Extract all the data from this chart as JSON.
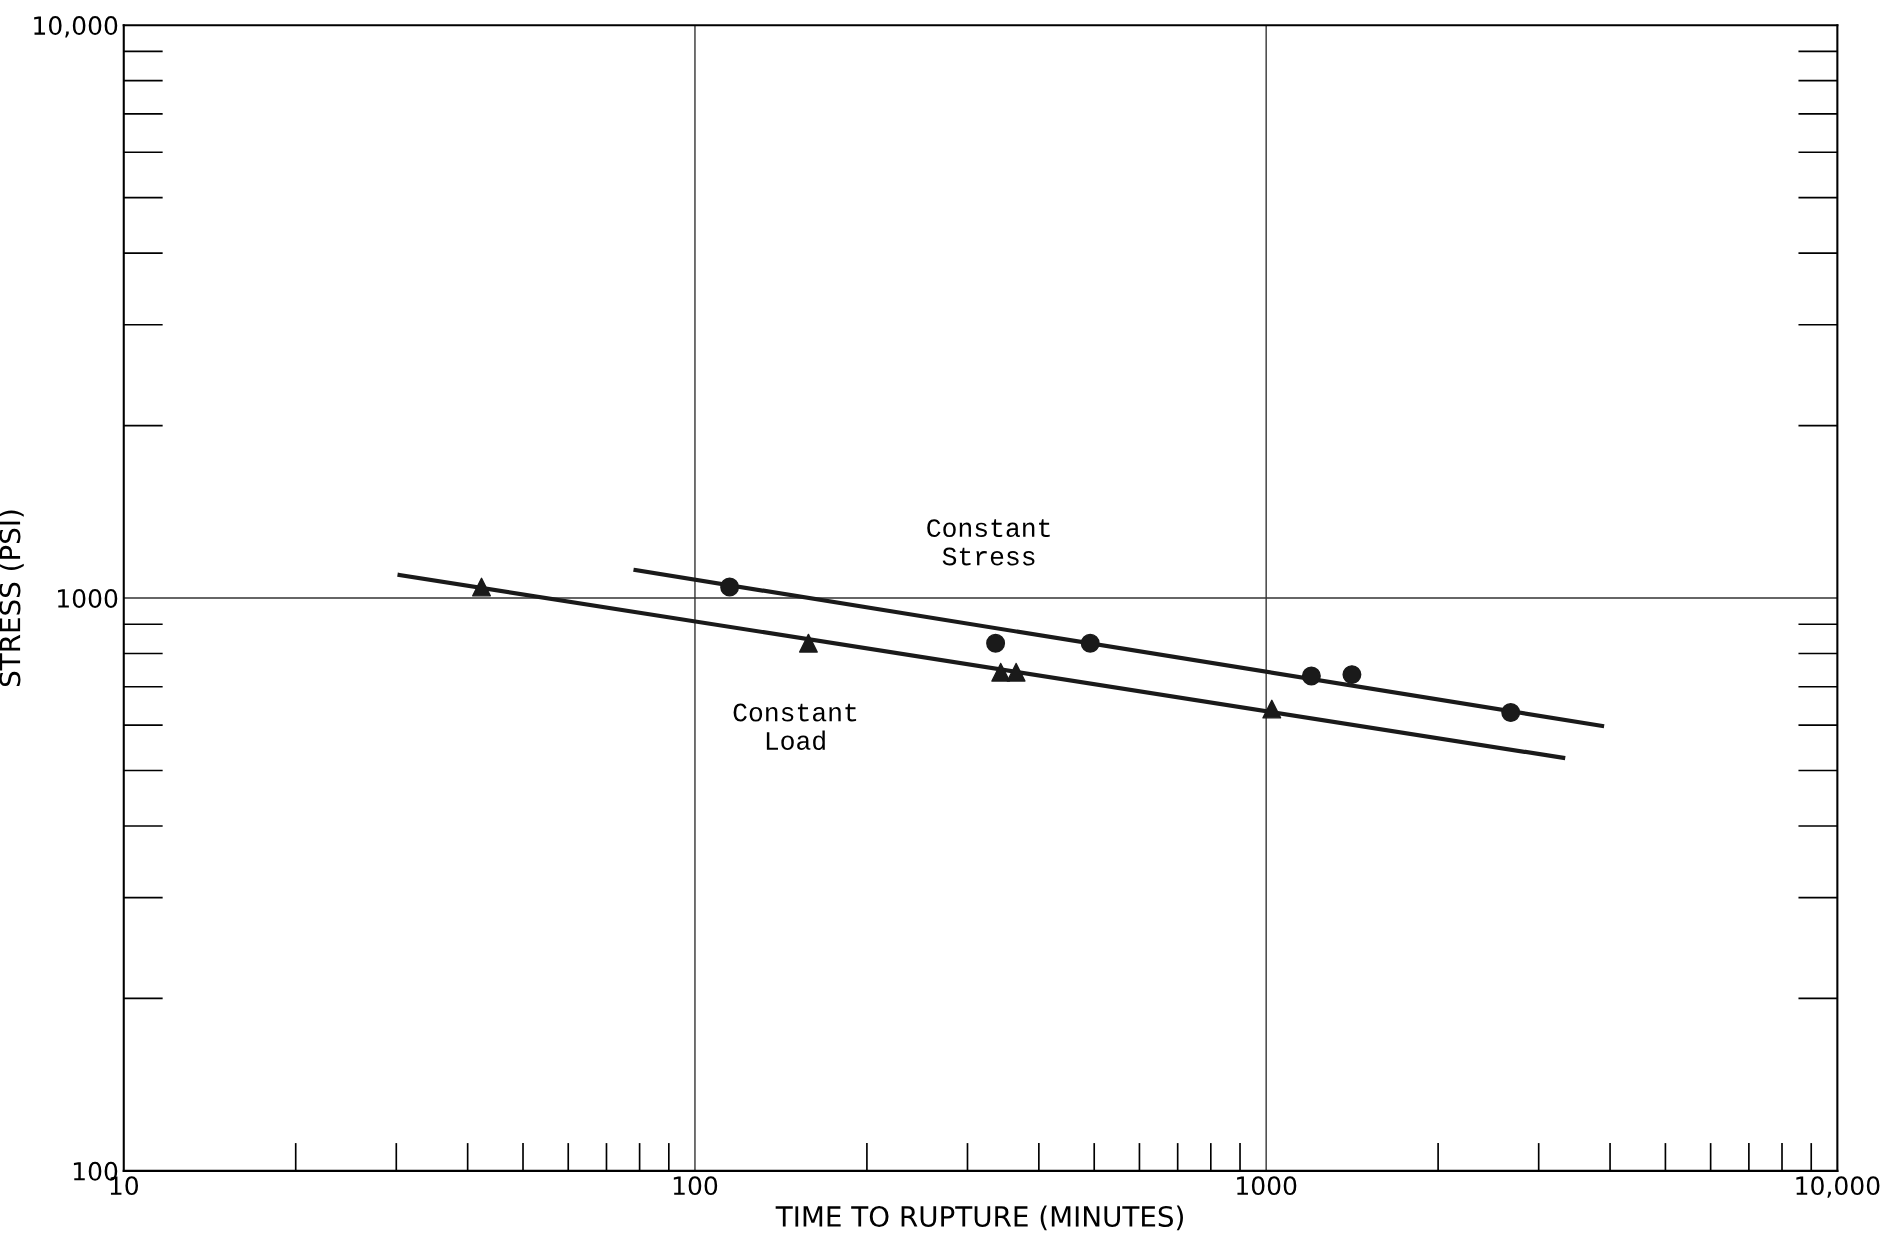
{
  "chart_data": {
    "type": "scatter",
    "xlabel": "TIME TO RUPTURE (MINUTES)",
    "ylabel": "STRESS (PSI)",
    "log": "xy",
    "grid": true,
    "xlim": [
      10,
      10000
    ],
    "ylim": [
      100,
      10000
    ],
    "xticks": [
      10,
      100,
      1000,
      {
        "value": 10000,
        "label": "10,000"
      }
    ],
    "yticks": [
      100,
      1000,
      {
        "value": 10000,
        "label": "10,000"
      }
    ],
    "series": [
      {
        "type": "scatter",
        "marker": "triangle",
        "color": "#1a1a1a",
        "x": [
          42.3,
          158,
          343,
          365,
          1023
        ],
        "values": [
          1045,
          834,
          742,
          742,
          640
        ]
      },
      {
        "marker": "circle",
        "color": "#1a1a1a",
        "x": [
          115,
          336,
          492,
          1200,
          1413,
          2680
        ],
        "values": [
          1045,
          834,
          834,
          731,
          735,
          631
        ]
      },
      {
        "type": "line",
        "color": "#1a1a1a",
        "x": [
          30.4,
          3311
        ],
        "values": [
          1097,
          526
        ]
      },
      {
        "type": "line",
        "color": "#1a1a1a",
        "x": [
          78.7,
          3873
        ],
        "values": [
          1119,
          598
        ]
      }
    ],
    "annotations": [
      "Constant\nStress",
      "Constant\nLoad"
    ]
  }
}
